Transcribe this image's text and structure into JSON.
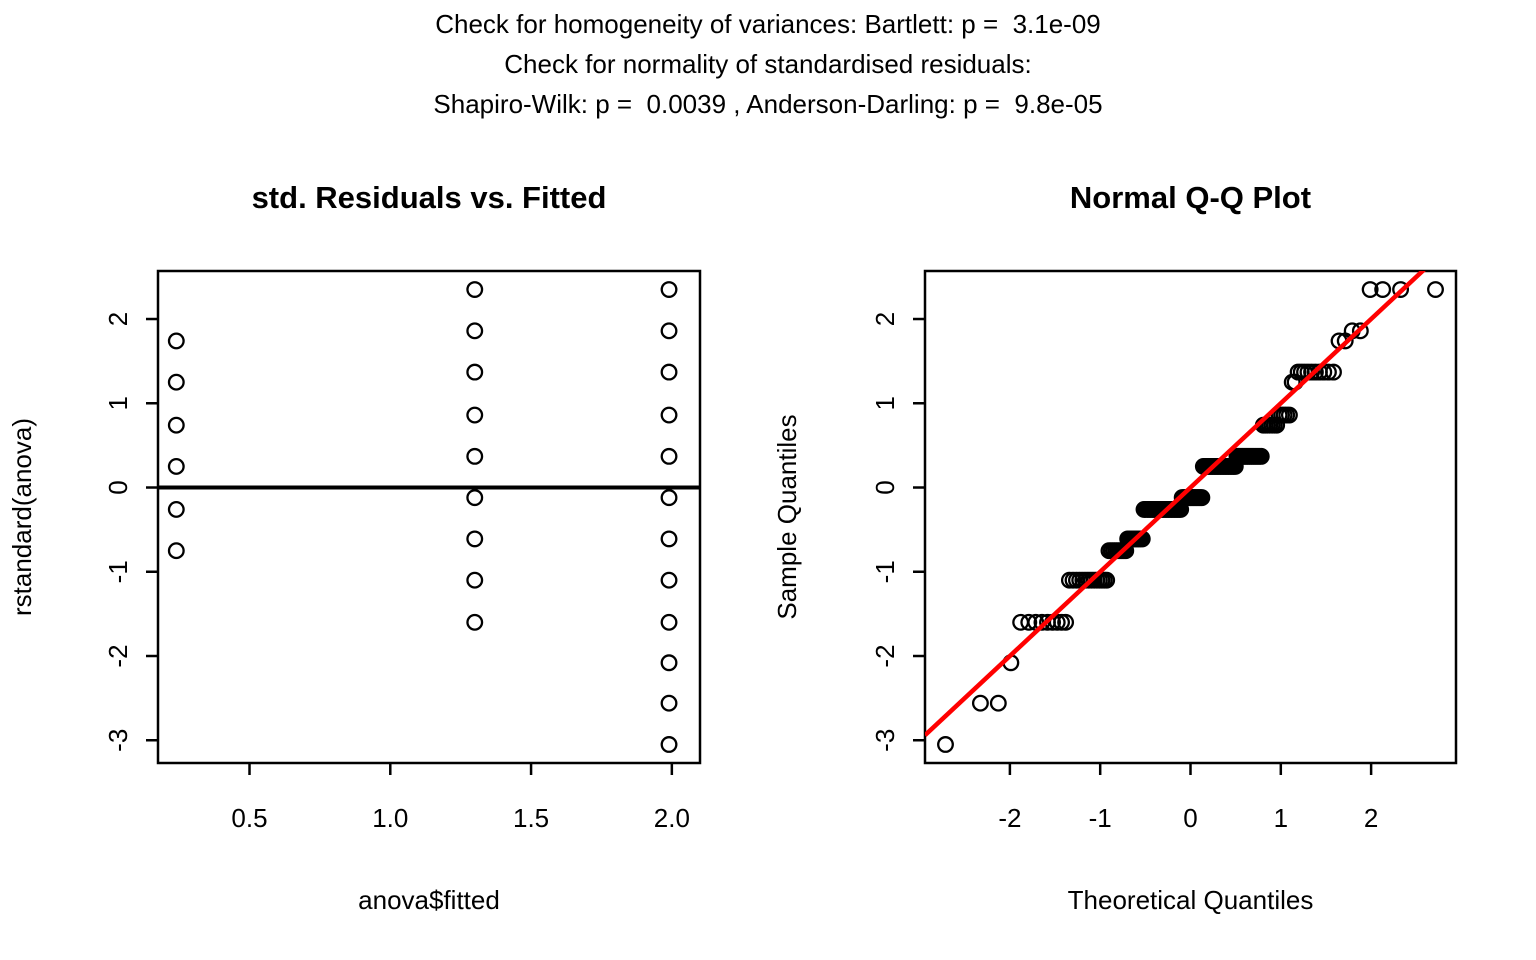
{
  "header": {
    "line1": "Check for homogeneity of variances: Bartlett: p =  3.1e-09",
    "line2": "Check for normality of standardised residuals:",
    "line3": "Shapiro-Wilk: p =  0.0039 , Anderson-Darling: p =  9.8e-05"
  },
  "chart_data": [
    {
      "type": "scatter",
      "title": "std. Residuals vs. Fitted",
      "xlabel": "anova$fitted",
      "ylabel": "rstandard(anova)",
      "xlim": [
        0.175,
        2.1
      ],
      "ylim": [
        -3.27,
        2.57
      ],
      "xticks": [
        {
          "v": 0.5,
          "label": "0.5"
        },
        {
          "v": 1.0,
          "label": "1.0"
        },
        {
          "v": 1.5,
          "label": "1.5"
        },
        {
          "v": 2.0,
          "label": "2.0"
        }
      ],
      "yticks": [
        {
          "v": 2,
          "label": "2"
        },
        {
          "v": 1,
          "label": "1"
        },
        {
          "v": 0,
          "label": "0"
        },
        {
          "v": -1,
          "label": "-1"
        },
        {
          "v": -2,
          "label": "-2"
        },
        {
          "v": -3,
          "label": "-3"
        }
      ],
      "grid": false,
      "hline_y": 0,
      "point_style": {
        "shape": "open-circle",
        "color": "#000000"
      },
      "groups": [
        {
          "fitted": 0.24,
          "residuals": [
            1.74,
            1.25,
            0.74,
            0.25,
            -0.26,
            -0.75
          ]
        },
        {
          "fitted": 1.3,
          "residuals": [
            2.35,
            1.86,
            1.37,
            0.86,
            0.37,
            -0.12,
            -0.61,
            -1.1,
            -1.6
          ]
        },
        {
          "fitted": 1.99,
          "residuals": [
            2.35,
            1.86,
            1.37,
            0.86,
            0.37,
            -0.12,
            -0.61,
            -1.1,
            -1.6,
            -2.08,
            -2.56,
            -3.05
          ]
        }
      ]
    },
    {
      "type": "scatter",
      "subtype": "qqnorm",
      "title": "Normal Q-Q Plot",
      "xlabel": "Theoretical Quantiles",
      "ylabel": "Sample Quantiles",
      "xlim": [
        -2.94,
        2.94
      ],
      "ylim": [
        -3.27,
        2.57
      ],
      "xticks": [
        {
          "v": -2,
          "label": "-2"
        },
        {
          "v": -1,
          "label": "-1"
        },
        {
          "v": 0,
          "label": "0"
        },
        {
          "v": 1,
          "label": "1"
        },
        {
          "v": 2,
          "label": "2"
        }
      ],
      "yticks": [
        {
          "v": 2,
          "label": "2"
        },
        {
          "v": 1,
          "label": "1"
        },
        {
          "v": 0,
          "label": "0"
        },
        {
          "v": -1,
          "label": "-1"
        },
        {
          "v": -2,
          "label": "-2"
        },
        {
          "v": -3,
          "label": "-3"
        }
      ],
      "grid": false,
      "n_points": 150,
      "point_style": {
        "shape": "open-circle",
        "color": "#000000"
      },
      "sample_levels": [
        {
          "value": -3.05,
          "count": 1
        },
        {
          "value": -2.56,
          "count": 2
        },
        {
          "value": -2.08,
          "count": 1
        },
        {
          "value": -1.6,
          "count": 9
        },
        {
          "value": -1.1,
          "count": 14
        },
        {
          "value": -0.75,
          "count": 9
        },
        {
          "value": -0.61,
          "count": 9
        },
        {
          "value": -0.26,
          "count": 24
        },
        {
          "value": -0.12,
          "count": 14
        },
        {
          "value": 0.25,
          "count": 21
        },
        {
          "value": 0.37,
          "count": 14
        },
        {
          "value": 0.74,
          "count": 7
        },
        {
          "value": 0.86,
          "count": 5
        },
        {
          "value": 1.25,
          "count": 2
        },
        {
          "value": 1.37,
          "count": 10
        },
        {
          "value": 1.74,
          "count": 2
        },
        {
          "value": 1.86,
          "count": 2
        },
        {
          "value": 2.35,
          "count": 4
        }
      ],
      "refline": {
        "slope": 1,
        "intercept": 0,
        "color": "#FF0000"
      }
    }
  ]
}
